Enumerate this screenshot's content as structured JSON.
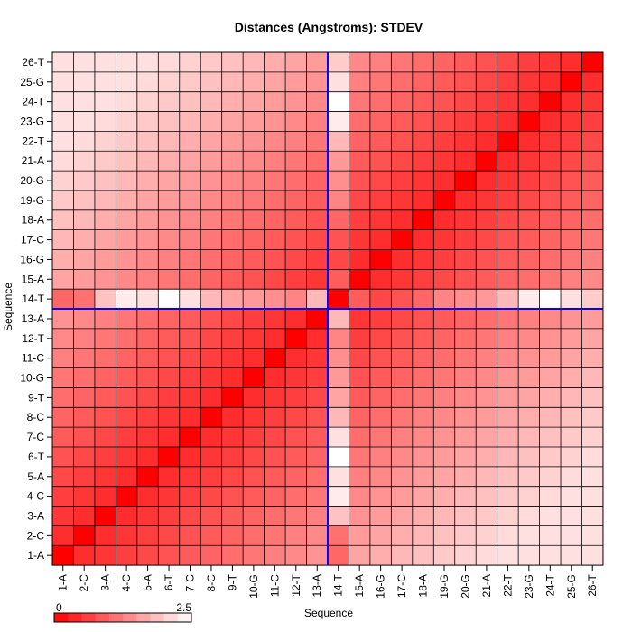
{
  "chart_data": {
    "type": "heatmap",
    "title": "Distances (Angstroms):  STDEV",
    "xlabel": "Sequence",
    "ylabel": "Sequence",
    "labels": [
      "1-A",
      "2-C",
      "3-A",
      "4-C",
      "5-A",
      "6-T",
      "7-C",
      "8-C",
      "9-T",
      "10-G",
      "11-C",
      "12-T",
      "13-A",
      "14-T",
      "15-A",
      "16-G",
      "17-C",
      "18-A",
      "19-G",
      "20-G",
      "21-A",
      "22-T",
      "23-G",
      "24-T",
      "25-G",
      "26-T"
    ],
    "value_range": [
      0,
      2.5
    ],
    "colorbar": {
      "min_label": "0",
      "max_label": "2.5"
    },
    "highlight_index": 13,
    "highlight_color": "#0000ff",
    "color_low": "#ff0000",
    "color_high": "#ffffff",
    "grid": true,
    "special_row_values": [
      1.0,
      1.1,
      1.9,
      2.3,
      2.2,
      2.5,
      2.2,
      1.8,
      1.6,
      1.5,
      1.4,
      1.3,
      1.8,
      0.0,
      0.9,
      0.7,
      0.8,
      1.0,
      1.3,
      1.4,
      1.5,
      1.8,
      2.3,
      2.5,
      2.2,
      2.0
    ]
  }
}
